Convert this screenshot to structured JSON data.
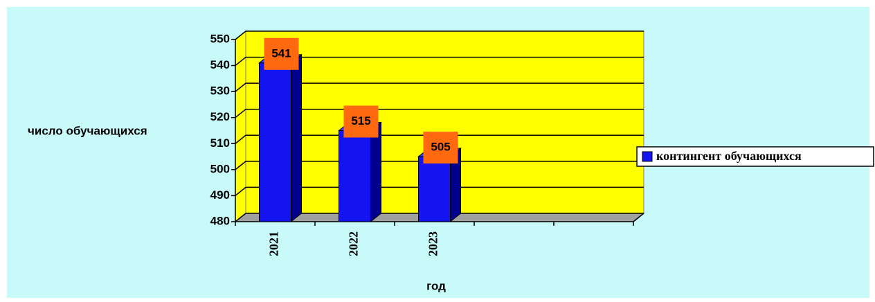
{
  "chart_data": {
    "type": "bar",
    "categories": [
      "2021",
      "2022",
      "2023",
      null,
      null
    ],
    "values": [
      541,
      515,
      505,
      null,
      null
    ],
    "color": "#1414f0",
    "y_label": "число обучающихся",
    "x_label": "год",
    "legend": [
      "контингент обучающихся"
    ],
    "legend_position": "right",
    "ylim": [
      480,
      550
    ],
    "yticks": [
      480,
      490,
      500,
      510,
      520,
      530,
      540,
      550
    ],
    "grid": true
  }
}
